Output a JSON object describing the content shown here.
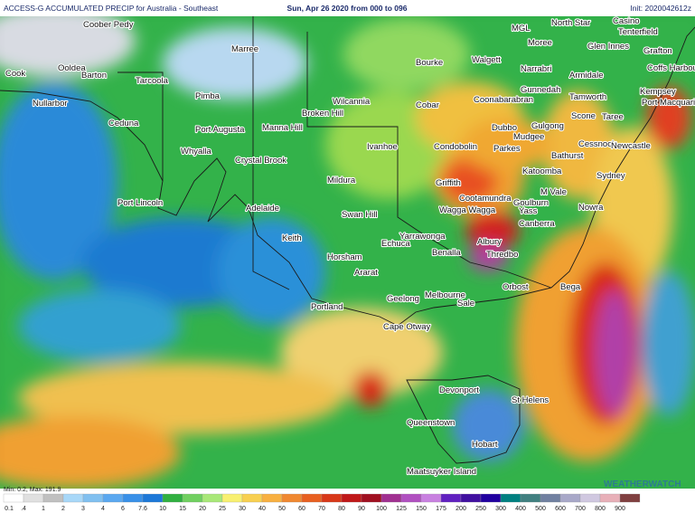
{
  "header": {
    "title": "ACCESS-G ACCUMULATED PRECIP for Australia - Southeast",
    "period": "Sun, Apr 26 2020 from 000 to 096",
    "init": "Init: 2020042612z"
  },
  "places": [
    "Coober Pedy",
    "Marree",
    "Cook",
    "Ooldea",
    "Barton",
    "Tarcoola",
    "Nullarbor",
    "Pimba",
    "Ceduna",
    "Port Augusta",
    "Manna Hill",
    "Broken Hill",
    "Wilcannia",
    "Whyalla",
    "Crystal Brook",
    "Bourke",
    "Walgett",
    "Cobar",
    "Ivanhoe",
    "Condobolin",
    "Mildura",
    "Port Lincoln",
    "Adelaide",
    "Swan Hill",
    "Griffith",
    "Cootamundra",
    "Wagga Wagga",
    "Keith",
    "Echuca",
    "Yarrawonga",
    "Albury",
    "Benalla",
    "Thredbo",
    "Horsham",
    "Ararat",
    "Geelong",
    "Melbourne",
    "Sale",
    "Orbost",
    "Portland",
    "Cape Otway",
    "Devonport",
    "St Helens",
    "Queenstown",
    "Hobart",
    "Maatsuyker Island",
    "MGL",
    "North Star",
    "Casino",
    "Tenterfield",
    "Moree",
    "Glen Innes",
    "Grafton",
    "Coffs Harbour",
    "Narrabri",
    "Armidale",
    "Gunnedah",
    "Tamworth",
    "Kempsey",
    "Port Macquarie",
    "Coonabarabran",
    "Scone",
    "Taree",
    "Dubbo",
    "Gulgong",
    "Mudgee",
    "Parkes",
    "Cessnock",
    "Newcastle",
    "Bathurst",
    "Sydney",
    "Katoomba",
    "M Vale",
    "Goulburn",
    "Yass",
    "Nowra",
    "Canberra",
    "Bega"
  ],
  "legend": {
    "labels": [
      "0.1",
      ".4",
      "1",
      "2",
      "3",
      "4",
      "6",
      "7.6",
      "10",
      "15",
      "20",
      "25",
      "30",
      "40",
      "50",
      "60",
      "70",
      "80",
      "90",
      "100",
      "125",
      "150",
      "175",
      "200",
      "250",
      "300",
      "400",
      "500",
      "600",
      "700",
      "800",
      "900"
    ],
    "stats": "Min: 0.2, Max: 191.9"
  },
  "watermark": "WEATHERWATCH"
}
